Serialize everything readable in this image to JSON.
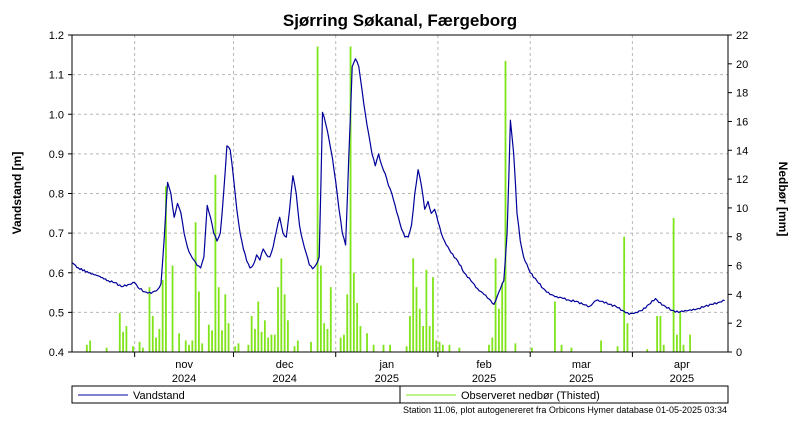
{
  "chart_data": {
    "type": "line",
    "title": "Sjørring Søkanal, Færgeborg",
    "ylabel": "Vandstand [m]",
    "y2label": "Nedbør [mm]",
    "ylim": [
      0.4,
      1.2
    ],
    "y2lim": [
      0,
      22
    ],
    "yticks": [
      "0.4",
      "0.5",
      "0.6",
      "0.7",
      "0.8",
      "0.9",
      "1.0",
      "1.1",
      "1.2"
    ],
    "y2ticks": [
      "0",
      "2",
      "4",
      "6",
      "8",
      "10",
      "12",
      "14",
      "16",
      "18",
      "20",
      "22"
    ],
    "xlim": [
      "2024-10-13",
      "2025-04-30"
    ],
    "month_ticks": [
      {
        "date": "2024-11-01",
        "month": "nov",
        "year": "2024"
      },
      {
        "date": "2024-12-01",
        "month": "dec",
        "year": "2024"
      },
      {
        "date": "2025-01-01",
        "month": "jan",
        "year": "2025"
      },
      {
        "date": "2025-02-01",
        "month": "feb",
        "year": "2025"
      },
      {
        "date": "2025-03-01",
        "month": "mar",
        "year": "2025"
      },
      {
        "date": "2025-04-01",
        "month": "apr",
        "year": "2025"
      }
    ],
    "grid": true,
    "legend_position": "bottom",
    "series": [
      {
        "name": "Vandstand",
        "type": "line",
        "axis": "left",
        "color": "#00009a",
        "points": [
          [
            "2024-10-13",
            0.625
          ],
          [
            "2024-10-15",
            0.612
          ],
          [
            "2024-10-18",
            0.6
          ],
          [
            "2024-10-21",
            0.592
          ],
          [
            "2024-10-24",
            0.58
          ],
          [
            "2024-10-26",
            0.575
          ],
          [
            "2024-10-28",
            0.565
          ],
          [
            "2024-10-30",
            0.57
          ],
          [
            "2024-11-01",
            0.575
          ],
          [
            "2024-11-02",
            0.563
          ],
          [
            "2024-11-04",
            0.552
          ],
          [
            "2024-11-06",
            0.548
          ],
          [
            "2024-11-08",
            0.558
          ],
          [
            "2024-11-09",
            0.572
          ],
          [
            "2024-11-10",
            0.69
          ],
          [
            "2024-11-11",
            0.828
          ],
          [
            "2024-11-12",
            0.8
          ],
          [
            "2024-11-13",
            0.74
          ],
          [
            "2024-11-14",
            0.775
          ],
          [
            "2024-11-15",
            0.752
          ],
          [
            "2024-11-16",
            0.7
          ],
          [
            "2024-11-17",
            0.665
          ],
          [
            "2024-11-18",
            0.645
          ],
          [
            "2024-11-19",
            0.632
          ],
          [
            "2024-11-20",
            0.618
          ],
          [
            "2024-11-21",
            0.612
          ],
          [
            "2024-11-22",
            0.64
          ],
          [
            "2024-11-23",
            0.77
          ],
          [
            "2024-11-24",
            0.74
          ],
          [
            "2024-11-25",
            0.7
          ],
          [
            "2024-11-26",
            0.68
          ],
          [
            "2024-11-27",
            0.7
          ],
          [
            "2024-11-28",
            0.8
          ],
          [
            "2024-11-29",
            0.92
          ],
          [
            "2024-11-30",
            0.91
          ],
          [
            "2024-12-01",
            0.84
          ],
          [
            "2024-12-02",
            0.76
          ],
          [
            "2024-12-03",
            0.7
          ],
          [
            "2024-12-04",
            0.66
          ],
          [
            "2024-12-05",
            0.63
          ],
          [
            "2024-12-06",
            0.612
          ],
          [
            "2024-12-07",
            0.62
          ],
          [
            "2024-12-08",
            0.645
          ],
          [
            "2024-12-09",
            0.632
          ],
          [
            "2024-12-10",
            0.66
          ],
          [
            "2024-12-11",
            0.645
          ],
          [
            "2024-12-12",
            0.64
          ],
          [
            "2024-12-13",
            0.665
          ],
          [
            "2024-12-14",
            0.705
          ],
          [
            "2024-12-15",
            0.74
          ],
          [
            "2024-12-16",
            0.7
          ],
          [
            "2024-12-17",
            0.69
          ],
          [
            "2024-12-18",
            0.76
          ],
          [
            "2024-12-19",
            0.845
          ],
          [
            "2024-12-20",
            0.8
          ],
          [
            "2024-12-21",
            0.72
          ],
          [
            "2024-12-22",
            0.68
          ],
          [
            "2024-12-23",
            0.65
          ],
          [
            "2024-12-24",
            0.62
          ],
          [
            "2024-12-25",
            0.61
          ],
          [
            "2024-12-26",
            0.62
          ],
          [
            "2024-12-27",
            0.64
          ],
          [
            "2024-12-28",
            1.005
          ],
          [
            "2024-12-29",
            0.975
          ],
          [
            "2024-12-30",
            0.935
          ],
          [
            "2024-12-31",
            0.89
          ],
          [
            "2025-01-01",
            0.83
          ],
          [
            "2025-01-02",
            0.76
          ],
          [
            "2025-01-03",
            0.7
          ],
          [
            "2025-01-04",
            0.67
          ],
          [
            "2025-01-05",
            0.9
          ],
          [
            "2025-01-06",
            1.12
          ],
          [
            "2025-01-07",
            1.14
          ],
          [
            "2025-01-08",
            1.12
          ],
          [
            "2025-01-09",
            1.06
          ],
          [
            "2025-01-10",
            1.0
          ],
          [
            "2025-01-11",
            0.95
          ],
          [
            "2025-01-12",
            0.9
          ],
          [
            "2025-01-13",
            0.87
          ],
          [
            "2025-01-14",
            0.9
          ],
          [
            "2025-01-15",
            0.87
          ],
          [
            "2025-01-16",
            0.85
          ],
          [
            "2025-01-17",
            0.82
          ],
          [
            "2025-01-18",
            0.8
          ],
          [
            "2025-01-19",
            0.77
          ],
          [
            "2025-01-20",
            0.74
          ],
          [
            "2025-01-21",
            0.71
          ],
          [
            "2025-01-22",
            0.69
          ],
          [
            "2025-01-23",
            0.69
          ],
          [
            "2025-01-24",
            0.72
          ],
          [
            "2025-01-25",
            0.8
          ],
          [
            "2025-01-26",
            0.86
          ],
          [
            "2025-01-27",
            0.82
          ],
          [
            "2025-01-28",
            0.76
          ],
          [
            "2025-01-29",
            0.78
          ],
          [
            "2025-01-30",
            0.75
          ],
          [
            "2025-01-31",
            0.76
          ],
          [
            "2025-02-01",
            0.73
          ],
          [
            "2025-02-02",
            0.7
          ],
          [
            "2025-02-03",
            0.68
          ],
          [
            "2025-02-05",
            0.65
          ],
          [
            "2025-02-07",
            0.63
          ],
          [
            "2025-02-09",
            0.6
          ],
          [
            "2025-02-11",
            0.58
          ],
          [
            "2025-02-13",
            0.56
          ],
          [
            "2025-02-15",
            0.545
          ],
          [
            "2025-02-17",
            0.53
          ],
          [
            "2025-02-18",
            0.52
          ],
          [
            "2025-02-19",
            0.54
          ],
          [
            "2025-02-20",
            0.56
          ],
          [
            "2025-02-21",
            0.58
          ],
          [
            "2025-02-22",
            0.7
          ],
          [
            "2025-02-23",
            0.985
          ],
          [
            "2025-02-24",
            0.9
          ],
          [
            "2025-02-25",
            0.75
          ],
          [
            "2025-02-26",
            0.68
          ],
          [
            "2025-02-27",
            0.64
          ],
          [
            "2025-03-01",
            0.6
          ],
          [
            "2025-03-03",
            0.58
          ],
          [
            "2025-03-05",
            0.56
          ],
          [
            "2025-03-07",
            0.545
          ],
          [
            "2025-03-09",
            0.54
          ],
          [
            "2025-03-11",
            0.535
          ],
          [
            "2025-03-13",
            0.53
          ],
          [
            "2025-03-15",
            0.528
          ],
          [
            "2025-03-17",
            0.52
          ],
          [
            "2025-03-19",
            0.515
          ],
          [
            "2025-03-21",
            0.53
          ],
          [
            "2025-03-23",
            0.528
          ],
          [
            "2025-03-25",
            0.52
          ],
          [
            "2025-03-27",
            0.515
          ],
          [
            "2025-03-29",
            0.505
          ],
          [
            "2025-03-31",
            0.495
          ],
          [
            "2025-04-02",
            0.5
          ],
          [
            "2025-04-04",
            0.505
          ],
          [
            "2025-04-06",
            0.52
          ],
          [
            "2025-04-08",
            0.535
          ],
          [
            "2025-04-09",
            0.525
          ],
          [
            "2025-04-11",
            0.515
          ],
          [
            "2025-04-13",
            0.505
          ],
          [
            "2025-04-15",
            0.5
          ],
          [
            "2025-04-17",
            0.505
          ],
          [
            "2025-04-19",
            0.505
          ],
          [
            "2025-04-21",
            0.51
          ],
          [
            "2025-04-23",
            0.515
          ],
          [
            "2025-04-25",
            0.52
          ],
          [
            "2025-04-27",
            0.525
          ],
          [
            "2025-04-29",
            0.53
          ]
        ]
      },
      {
        "name": "Observeret nedbør (Thisted)",
        "type": "bar",
        "axis": "right",
        "color": "#80e41a",
        "points": [
          [
            "2024-10-17",
            0.5
          ],
          [
            "2024-10-18",
            0.8
          ],
          [
            "2024-10-23",
            0.3
          ],
          [
            "2024-10-27",
            2.7
          ],
          [
            "2024-10-28",
            1.4
          ],
          [
            "2024-10-29",
            1.8
          ],
          [
            "2024-10-31",
            0.4
          ],
          [
            "2024-11-02",
            0.7
          ],
          [
            "2024-11-03",
            0.3
          ],
          [
            "2024-11-05",
            4.5
          ],
          [
            "2024-11-06",
            2.5
          ],
          [
            "2024-11-07",
            1.0
          ],
          [
            "2024-11-08",
            1.6
          ],
          [
            "2024-11-09",
            5.0
          ],
          [
            "2024-11-10",
            11.5
          ],
          [
            "2024-11-12",
            6.0
          ],
          [
            "2024-11-14",
            1.3
          ],
          [
            "2024-11-16",
            0.8
          ],
          [
            "2024-11-17",
            0.5
          ],
          [
            "2024-11-18",
            0.8
          ],
          [
            "2024-11-19",
            9.0
          ],
          [
            "2024-11-20",
            4.2
          ],
          [
            "2024-11-21",
            0.6
          ],
          [
            "2024-11-23",
            1.9
          ],
          [
            "2024-11-24",
            1.5
          ],
          [
            "2024-11-25",
            12.3
          ],
          [
            "2024-11-26",
            4.5
          ],
          [
            "2024-11-27",
            1.5
          ],
          [
            "2024-11-28",
            4.0
          ],
          [
            "2024-11-29",
            2.0
          ],
          [
            "2024-12-01",
            0.4
          ],
          [
            "2024-12-02",
            0.6
          ],
          [
            "2024-12-05",
            0.5
          ],
          [
            "2024-12-06",
            2.5
          ],
          [
            "2024-12-07",
            1.6
          ],
          [
            "2024-12-08",
            3.5
          ],
          [
            "2024-12-09",
            1.4
          ],
          [
            "2024-12-10",
            2.2
          ],
          [
            "2024-12-11",
            1.0
          ],
          [
            "2024-12-12",
            1.2
          ],
          [
            "2024-12-13",
            1.2
          ],
          [
            "2024-12-14",
            4.5
          ],
          [
            "2024-12-15",
            6.5
          ],
          [
            "2024-12-16",
            4.0
          ],
          [
            "2024-12-17",
            2.2
          ],
          [
            "2024-12-19",
            0.4
          ],
          [
            "2024-12-20",
            0.8
          ],
          [
            "2024-12-24",
            0.7
          ],
          [
            "2024-12-26",
            21.2
          ],
          [
            "2024-12-27",
            6.0
          ],
          [
            "2024-12-28",
            2.0
          ],
          [
            "2024-12-29",
            1.6
          ],
          [
            "2024-12-30",
            4.5
          ],
          [
            "2025-01-02",
            1.0
          ],
          [
            "2025-01-03",
            1.2
          ],
          [
            "2025-01-04",
            4.0
          ],
          [
            "2025-01-05",
            21.2
          ],
          [
            "2025-01-06",
            5.5
          ],
          [
            "2025-01-07",
            3.4
          ],
          [
            "2025-01-08",
            1.8
          ],
          [
            "2025-01-10",
            1.3
          ],
          [
            "2025-01-12",
            0.5
          ],
          [
            "2025-01-15",
            0.5
          ],
          [
            "2025-01-17",
            0.5
          ],
          [
            "2025-01-22",
            0.4
          ],
          [
            "2025-01-23",
            2.5
          ],
          [
            "2025-01-24",
            6.5
          ],
          [
            "2025-01-25",
            4.5
          ],
          [
            "2025-01-26",
            3.0
          ],
          [
            "2025-01-27",
            1.8
          ],
          [
            "2025-01-28",
            5.7
          ],
          [
            "2025-01-29",
            1.8
          ],
          [
            "2025-01-30",
            5.2
          ],
          [
            "2025-01-31",
            0.8
          ],
          [
            "2025-02-01",
            0.7
          ],
          [
            "2025-02-02",
            0.5
          ],
          [
            "2025-02-04",
            0.5
          ],
          [
            "2025-02-07",
            0.3
          ],
          [
            "2025-02-16",
            0.5
          ],
          [
            "2025-02-17",
            1.0
          ],
          [
            "2025-02-18",
            6.5
          ],
          [
            "2025-02-19",
            3.0
          ],
          [
            "2025-02-20",
            4.8
          ],
          [
            "2025-02-21",
            20.2
          ],
          [
            "2025-02-24",
            0.6
          ],
          [
            "2025-03-01",
            0.3
          ],
          [
            "2025-03-08",
            3.5
          ],
          [
            "2025-03-10",
            0.5
          ],
          [
            "2025-03-13",
            0.3
          ],
          [
            "2025-03-22",
            0.8
          ],
          [
            "2025-03-27",
            0.4
          ],
          [
            "2025-03-29",
            8.0
          ],
          [
            "2025-03-30",
            2.0
          ],
          [
            "2025-04-05",
            0.2
          ],
          [
            "2025-04-08",
            2.5
          ],
          [
            "2025-04-09",
            2.5
          ],
          [
            "2025-04-10",
            0.5
          ],
          [
            "2025-04-13",
            9.3
          ],
          [
            "2025-04-14",
            1.2
          ],
          [
            "2025-04-15",
            2.8
          ],
          [
            "2025-04-16",
            0.5
          ],
          [
            "2025-04-18",
            1.2
          ]
        ]
      }
    ],
    "footer": "Station 11.06, plot autogenereret fra Orbicons Hymer database 01-05-2025 03:34"
  }
}
